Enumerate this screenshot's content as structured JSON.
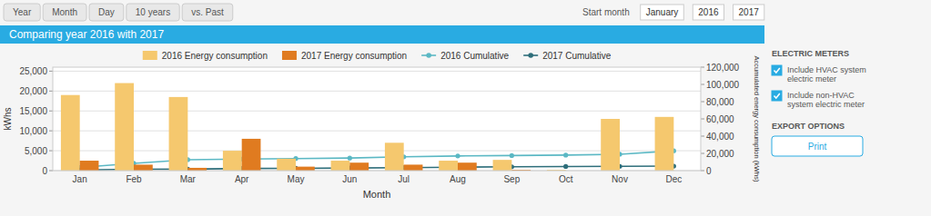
{
  "chart_data": {
    "type": "bar",
    "title": "Comparing year 2016 with 2017",
    "xlabel": "Month",
    "ylabel": "kWhs",
    "y2label": "Accumulated energy consumption (kWhs)",
    "categories": [
      "Jan",
      "Feb",
      "Mar",
      "Apr",
      "May",
      "Jun",
      "Jul",
      "Aug",
      "Sep",
      "Oct",
      "Nov",
      "Dec"
    ],
    "series": [
      {
        "name": "2016 Energy consumption",
        "type": "bar",
        "color": "#F5C86E",
        "values": [
          19000,
          22000,
          18500,
          5000,
          3000,
          2500,
          7000,
          2500,
          2700,
          200,
          13000,
          13500
        ]
      },
      {
        "name": "2017 Energy consumption",
        "type": "bar",
        "color": "#E07B20",
        "values": [
          2500,
          1500,
          700,
          8000,
          1000,
          2000,
          1500,
          2000,
          200,
          0,
          0,
          0
        ]
      },
      {
        "name": "2016 Cumulative",
        "type": "line",
        "axis": "y2",
        "color": "#5BB8C4",
        "marker": "circle",
        "values": [
          3700,
          8500,
          12700,
          13400,
          14000,
          14600,
          16000,
          17000,
          17500,
          18000,
          19000,
          23000
        ]
      },
      {
        "name": "2017 Cumulative",
        "type": "line",
        "axis": "y2",
        "color": "#2E6E7A",
        "marker": "circle",
        "values": [
          700,
          1500,
          1700,
          2500,
          2700,
          3000,
          3500,
          4000,
          4500,
          4800,
          5000,
          5200
        ]
      }
    ],
    "ylim": [
      0,
      26000
    ],
    "yticks": [
      0,
      {
        "value": 5000,
        "label": "5,000"
      },
      {
        "value": 10000,
        "label": "10,000"
      },
      {
        "value": 15000,
        "label": "15,000"
      },
      {
        "value": 20000,
        "label": "20,000"
      },
      {
        "value": 25000,
        "label": "25,000"
      }
    ],
    "y2lim": [
      0,
      120000
    ],
    "y2ticks": [
      0,
      {
        "value": 20000,
        "label": "20,000"
      },
      {
        "value": 40000,
        "label": "40,000"
      },
      {
        "value": 60000,
        "label": "60,000"
      },
      {
        "value": 80000,
        "label": "80,000"
      },
      {
        "value": 100000,
        "label": "100,000"
      },
      {
        "value": 120000,
        "label": "120,000"
      }
    ],
    "grid": true,
    "legend": "top",
    "annotations": [
      "Year",
      "Month",
      "Day",
      "10 years",
      "vs. Past",
      "Start month",
      "January",
      "2016",
      "2017",
      "ELECTRIC METERS",
      "Include HVAC system\nelectric meter",
      "Include non-HVAC\nsystem electric meter",
      "EXPORT OPTIONS",
      "Print"
    ]
  }
}
